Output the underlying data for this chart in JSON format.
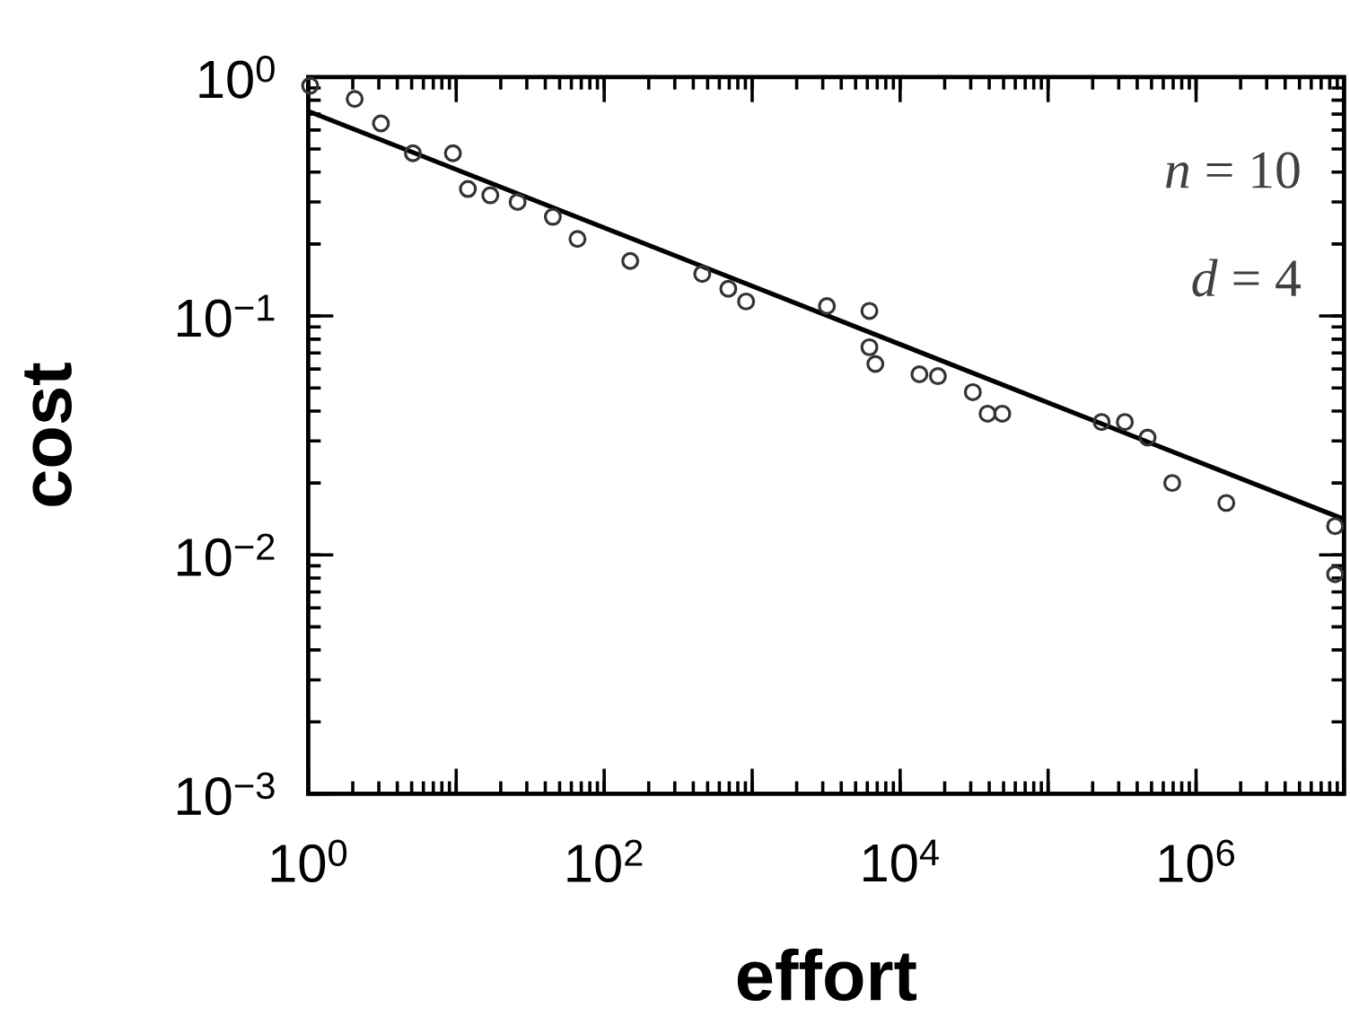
{
  "chart_data": {
    "type": "scatter",
    "xlabel": "effort",
    "ylabel": "cost",
    "log": "xy",
    "grid": false,
    "marker": "circle",
    "xlim": [
      1,
      10000000
    ],
    "ylim": [
      0.001,
      1
    ],
    "xticks": [
      {
        "value": 1,
        "label": "10$^{0}$"
      },
      {
        "value": 10,
        "label": null
      },
      {
        "value": 100,
        "label": "10$^{2}$"
      },
      {
        "value": 1000,
        "label": null
      },
      {
        "value": 10000,
        "label": "10$^{4}$"
      },
      {
        "value": 100000,
        "label": null
      },
      {
        "value": 1000000,
        "label": "10$^{6}$"
      },
      {
        "value": 10000000,
        "label": null
      }
    ],
    "yticks": [
      {
        "value": 0.001,
        "label": "10$^{−3}$"
      },
      {
        "value": 0.01,
        "label": "10$^{−2}$"
      },
      {
        "value": 0.1,
        "label": "10$^{−1}$"
      },
      {
        "value": 1,
        "label": "10$^{0}$"
      }
    ],
    "annotations": [
      "*n* = 10",
      "*d* = 4"
    ],
    "series": [
      {
        "color": "#333333",
        "x": [
          1.03,
          2.06,
          3.1,
          5.1,
          9.5,
          12,
          17,
          26,
          45,
          66,
          150,
          460,
          690,
          910,
          3200,
          6200,
          6200,
          6800,
          13500,
          18000,
          31000,
          39000,
          49000,
          230000,
          330000,
          470000,
          690000,
          1600000,
          8700000,
          8700000
        ],
        "values": [
          0.92,
          0.81,
          0.64,
          0.48,
          0.48,
          0.34,
          0.32,
          0.3,
          0.26,
          0.21,
          0.17,
          0.15,
          0.13,
          0.115,
          0.11,
          0.105,
          0.074,
          0.063,
          0.057,
          0.056,
          0.048,
          0.039,
          0.039,
          0.036,
          0.036,
          0.031,
          0.02,
          0.0165,
          0.0132,
          0.0083
        ]
      },
      {
        "type": "line",
        "color": "#000000",
        "marker": "none",
        "x": [
          1,
          10000000
        ],
        "values": [
          0.72,
          0.0141
        ]
      }
    ]
  }
}
